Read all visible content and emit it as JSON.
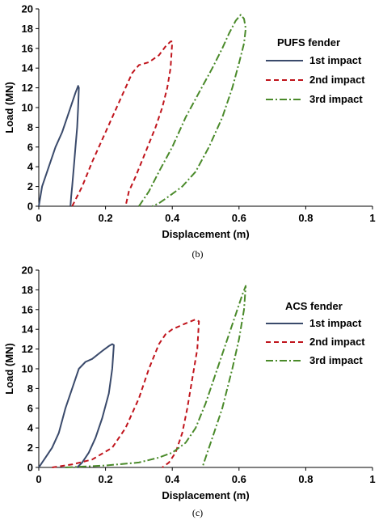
{
  "chart_data": [
    {
      "type": "line",
      "title": "",
      "subtitle": "(b)",
      "xlabel": "Displacement (m)",
      "ylabel": "Load (MN)",
      "xlim": [
        0,
        1
      ],
      "ylim": [
        0,
        20
      ],
      "xticks": [
        "0",
        "0.2",
        "0.4",
        "0.6",
        "0.8",
        "1"
      ],
      "yticks": [
        "0",
        "2",
        "4",
        "6",
        "8",
        "10",
        "12",
        "14",
        "16",
        "18",
        "20"
      ],
      "grid": false,
      "legend_title": "PUFS fender",
      "legend_position": "right",
      "series": [
        {
          "name": "1st impact",
          "color": "#3a4a6b",
          "dash": "solid",
          "x": [
            0.0,
            0.01,
            0.03,
            0.05,
            0.07,
            0.09,
            0.11,
            0.118,
            0.12,
            0.118,
            0.115,
            0.11,
            0.105,
            0.1,
            0.097,
            0.095
          ],
          "y": [
            0.0,
            2.0,
            4.0,
            6.0,
            7.5,
            9.5,
            11.5,
            12.2,
            12.0,
            10.0,
            8.0,
            6.0,
            4.0,
            2.0,
            1.0,
            0.0
          ]
        },
        {
          "name": "2nd impact",
          "color": "#c0141c",
          "dash": "6,4",
          "x": [
            0.1,
            0.13,
            0.16,
            0.2,
            0.24,
            0.28,
            0.3,
            0.33,
            0.36,
            0.38,
            0.395,
            0.4,
            0.395,
            0.385,
            0.37,
            0.35,
            0.32,
            0.29,
            0.27,
            0.26
          ],
          "y": [
            0.0,
            2.0,
            4.5,
            7.5,
            10.5,
            13.5,
            14.3,
            14.6,
            15.3,
            16.2,
            16.7,
            16.7,
            14.0,
            12.0,
            10.0,
            8.0,
            5.5,
            3.0,
            1.5,
            0.0
          ]
        },
        {
          "name": "3rd impact",
          "color": "#4a8a2a",
          "dash": "9,3,2,3",
          "x": [
            0.3,
            0.33,
            0.36,
            0.4,
            0.44,
            0.48,
            0.52,
            0.55,
            0.57,
            0.59,
            0.605,
            0.615,
            0.62,
            0.615,
            0.6,
            0.58,
            0.55,
            0.51,
            0.47,
            0.43,
            0.39,
            0.36,
            0.34
          ],
          "y": [
            0.0,
            1.5,
            3.5,
            6.0,
            9.0,
            11.5,
            14.0,
            16.0,
            17.5,
            18.8,
            19.4,
            19.0,
            18.0,
            16.5,
            14.5,
            12.0,
            9.0,
            6.0,
            3.5,
            2.0,
            1.0,
            0.3,
            0.0
          ]
        }
      ]
    },
    {
      "type": "line",
      "title": "",
      "subtitle": "(c)",
      "xlabel": "Displacement (m)",
      "ylabel": "Load (MN)",
      "xlim": [
        0,
        1
      ],
      "ylim": [
        0,
        20
      ],
      "xticks": [
        "0",
        "0.2",
        "0.4",
        "0.6",
        "0.8",
        "1"
      ],
      "yticks": [
        "0",
        "2",
        "4",
        "6",
        "8",
        "10",
        "12",
        "14",
        "16",
        "18",
        "20"
      ],
      "grid": false,
      "legend_title": "ACS fender",
      "legend_position": "right",
      "series": [
        {
          "name": "1st impact",
          "color": "#3a4a6b",
          "dash": "solid",
          "x": [
            0.0,
            0.02,
            0.04,
            0.06,
            0.08,
            0.1,
            0.12,
            0.14,
            0.16,
            0.19,
            0.21,
            0.22,
            0.225,
            0.22,
            0.21,
            0.19,
            0.17,
            0.15,
            0.13,
            0.115
          ],
          "y": [
            0.0,
            1.0,
            2.0,
            3.5,
            6.0,
            8.0,
            10.0,
            10.7,
            11.0,
            11.8,
            12.3,
            12.5,
            12.4,
            10.0,
            7.5,
            5.0,
            3.0,
            1.5,
            0.5,
            0.0
          ]
        },
        {
          "name": "2nd impact",
          "color": "#c0141c",
          "dash": "6,4",
          "x": [
            0.04,
            0.1,
            0.16,
            0.22,
            0.26,
            0.3,
            0.33,
            0.36,
            0.38,
            0.4,
            0.44,
            0.47,
            0.48,
            0.475,
            0.46,
            0.445,
            0.43,
            0.41,
            0.39,
            0.37
          ],
          "y": [
            0.0,
            0.3,
            0.8,
            2.0,
            4.0,
            7.0,
            10.0,
            12.5,
            13.5,
            14.0,
            14.6,
            15.0,
            14.8,
            12.0,
            9.0,
            6.0,
            3.5,
            1.5,
            0.5,
            0.0
          ]
        },
        {
          "name": "3rd impact",
          "color": "#4a8a2a",
          "dash": "9,3,2,3",
          "x": [
            0.08,
            0.2,
            0.3,
            0.36,
            0.4,
            0.44,
            0.47,
            0.5,
            0.53,
            0.56,
            0.59,
            0.61,
            0.62,
            0.615,
            0.6,
            0.58,
            0.55,
            0.52,
            0.5,
            0.49
          ],
          "y": [
            0.0,
            0.2,
            0.5,
            1.0,
            1.5,
            2.5,
            4.0,
            6.5,
            9.5,
            12.5,
            15.5,
            17.5,
            18.4,
            16.0,
            13.0,
            10.0,
            6.0,
            3.0,
            1.0,
            0.0
          ]
        }
      ]
    }
  ]
}
